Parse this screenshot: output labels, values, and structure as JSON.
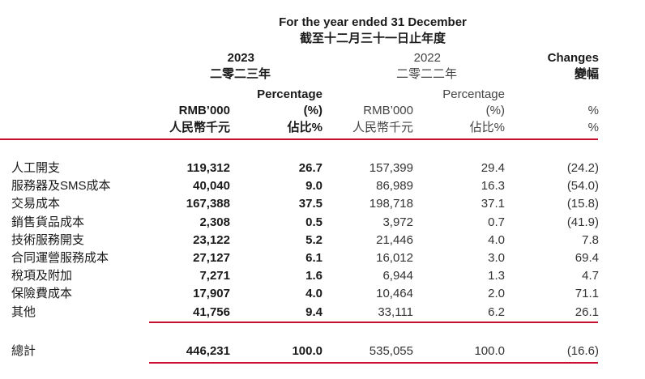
{
  "header": {
    "period_en": "For the year ended 31 December",
    "period_zh": "截至十二月三十一日止年度",
    "year_2023": "2023",
    "year_2023_zh": "二零二三年",
    "year_2022": "2022",
    "year_2022_zh": "二零二二年",
    "changes_en": "Changes",
    "changes_zh": "變幅",
    "pct_label_1": "Percentage",
    "pct_label_2": "(%)",
    "pct_label_zh": "佔比%",
    "rmb_label": "RMB’000",
    "rmb_label_zh": "人民幣千元",
    "change_unit_1": "%",
    "change_unit_2": "%"
  },
  "rows": [
    {
      "label": "人工開支",
      "amount_2023": "119,312",
      "pct_2023": "26.7",
      "amount_2022": "157,399",
      "pct_2022": "29.4",
      "change": "(24.2)"
    },
    {
      "label": "服務器及SMS成本",
      "amount_2023": "40,040",
      "pct_2023": "9.0",
      "amount_2022": "86,989",
      "pct_2022": "16.3",
      "change": "(54.0)"
    },
    {
      "label": "交易成本",
      "amount_2023": "167,388",
      "pct_2023": "37.5",
      "amount_2022": "198,718",
      "pct_2022": "37.1",
      "change": "(15.8)"
    },
    {
      "label": "銷售貨品成本",
      "amount_2023": "2,308",
      "pct_2023": "0.5",
      "amount_2022": "3,972",
      "pct_2022": "0.7",
      "change": "(41.9)"
    },
    {
      "label": "技術服務開支",
      "amount_2023": "23,122",
      "pct_2023": "5.2",
      "amount_2022": "21,446",
      "pct_2022": "4.0",
      "change": "7.8"
    },
    {
      "label": "合同運營服務成本",
      "amount_2023": "27,127",
      "pct_2023": "6.1",
      "amount_2022": "16,012",
      "pct_2022": "3.0",
      "change": "69.4"
    },
    {
      "label": "稅項及附加",
      "amount_2023": "7,271",
      "pct_2023": "1.6",
      "amount_2022": "6,944",
      "pct_2022": "1.3",
      "change": "4.7"
    },
    {
      "label": "保險費成本",
      "amount_2023": "17,907",
      "pct_2023": "4.0",
      "amount_2022": "10,464",
      "pct_2022": "2.0",
      "change": "71.1"
    },
    {
      "label": "其他",
      "amount_2023": "41,756",
      "pct_2023": "9.4",
      "amount_2022": "33,111",
      "pct_2022": "6.2",
      "change": "26.1"
    }
  ],
  "total": {
    "label": "總計",
    "amount_2023": "446,231",
    "pct_2023": "100.0",
    "amount_2022": "535,055",
    "pct_2022": "100.0",
    "change": "(16.6)"
  },
  "colors": {
    "rule": "#c8102e"
  }
}
